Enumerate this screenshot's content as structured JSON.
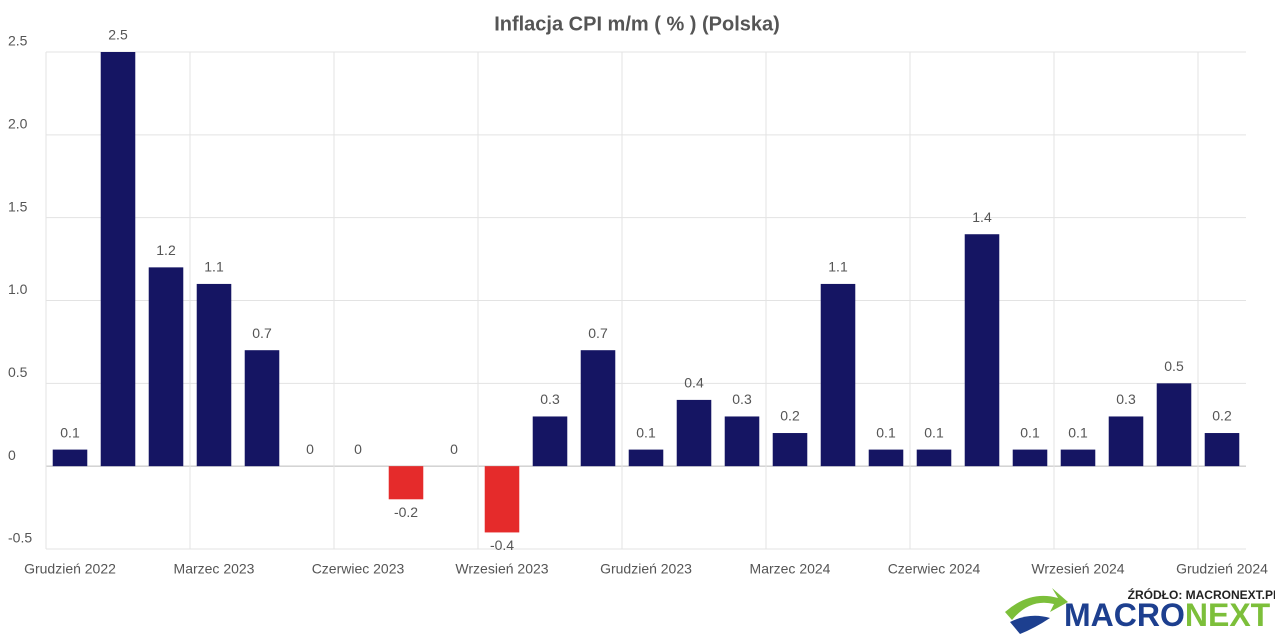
{
  "chart_data": {
    "type": "bar",
    "title": "Inflacja CPI m/m ( % ) (Polska)",
    "categories": [
      "Grudzień 2022",
      null,
      null,
      "Marzec 2023",
      null,
      null,
      "Czerwiec 2023",
      null,
      null,
      "Wrzesień 2023",
      null,
      null,
      "Grudzień 2023",
      null,
      null,
      "Marzec 2024",
      null,
      null,
      "Czerwiec 2024",
      null,
      null,
      "Wrzesień 2024",
      null,
      null,
      "Grudzień 2024"
    ],
    "values": [
      0.1,
      2.5,
      1.2,
      1.1,
      0.7,
      0,
      0,
      -0.2,
      0,
      -0.4,
      0.3,
      0.7,
      0.1,
      0.4,
      0.3,
      0.2,
      1.1,
      0.1,
      0.1,
      1.4,
      0.1,
      0.1,
      0.3,
      0.5,
      0.2
    ],
    "color": "#151563",
    "negative_color": "#e52b2b",
    "ylim": [
      -0.5,
      2.5
    ],
    "yticks": [
      {
        "value": -0.5,
        "label": "-0.5"
      },
      0,
      0.5,
      {
        "value": 1,
        "label": "1.0"
      },
      1.5,
      {
        "value": 2,
        "label": "2.0"
      },
      2.5
    ],
    "grid": true,
    "source": "ŹRÓDŁO: MACRONEXT.PL",
    "logo": [
      "MACRO",
      "NEXT"
    ]
  }
}
